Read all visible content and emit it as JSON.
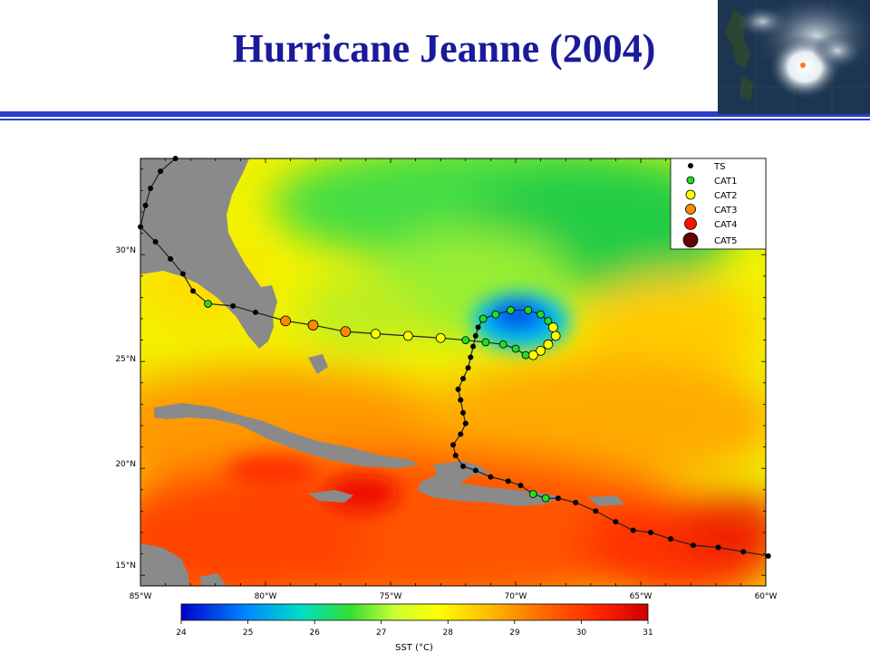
{
  "slide": {
    "title": "Hurricane Jeanne (2004)"
  },
  "map": {
    "lat_labels": [
      "30°N",
      "25°N",
      "20°N",
      "15°N"
    ],
    "lon_labels": [
      "85°W",
      "80°W",
      "75°W",
      "70°W",
      "65°W",
      "60°W"
    ],
    "lon_range": [
      -85,
      -60
    ],
    "lat_range": [
      14.5,
      34.5
    ],
    "legend": [
      {
        "label": "TS",
        "color": "#000000",
        "size": 3
      },
      {
        "label": "CAT1",
        "color": "#22dd22",
        "size": 4
      },
      {
        "label": "CAT2",
        "color": "#ffff00",
        "size": 5
      },
      {
        "label": "CAT3",
        "color": "#ff8800",
        "size": 5.5
      },
      {
        "label": "CAT4",
        "color": "#ff1100",
        "size": 6.5
      },
      {
        "label": "CAT5",
        "color": "#660000",
        "size": 8
      }
    ]
  },
  "colorbar": {
    "title": "SST (°C)",
    "ticks": [
      "24",
      "25",
      "26",
      "27",
      "28",
      "29",
      "30",
      "31"
    ],
    "min": 24,
    "max": 31
  },
  "track": [
    {
      "lon": -59.9,
      "lat": 15.9,
      "cat": "TS"
    },
    {
      "lon": -60.9,
      "lat": 16.1,
      "cat": "TS"
    },
    {
      "lon": -61.9,
      "lat": 16.3,
      "cat": "TS"
    },
    {
      "lon": -62.9,
      "lat": 16.4,
      "cat": "TS"
    },
    {
      "lon": -63.8,
      "lat": 16.7,
      "cat": "TS"
    },
    {
      "lon": -64.6,
      "lat": 17.0,
      "cat": "TS"
    },
    {
      "lon": -65.3,
      "lat": 17.1,
      "cat": "TS"
    },
    {
      "lon": -66.0,
      "lat": 17.5,
      "cat": "TS"
    },
    {
      "lon": -66.8,
      "lat": 18.0,
      "cat": "TS"
    },
    {
      "lon": -67.6,
      "lat": 18.4,
      "cat": "TS"
    },
    {
      "lon": -68.3,
      "lat": 18.6,
      "cat": "TS"
    },
    {
      "lon": -68.8,
      "lat": 18.6,
      "cat": "CAT1"
    },
    {
      "lon": -69.3,
      "lat": 18.8,
      "cat": "CAT1"
    },
    {
      "lon": -69.8,
      "lat": 19.2,
      "cat": "TS"
    },
    {
      "lon": -70.3,
      "lat": 19.4,
      "cat": "TS"
    },
    {
      "lon": -71.0,
      "lat": 19.6,
      "cat": "TS"
    },
    {
      "lon": -71.6,
      "lat": 19.9,
      "cat": "TS"
    },
    {
      "lon": -72.1,
      "lat": 20.1,
      "cat": "TS"
    },
    {
      "lon": -72.4,
      "lat": 20.6,
      "cat": "TS"
    },
    {
      "lon": -72.5,
      "lat": 21.1,
      "cat": "TS"
    },
    {
      "lon": -72.2,
      "lat": 21.6,
      "cat": "TS"
    },
    {
      "lon": -72.0,
      "lat": 22.1,
      "cat": "TS"
    },
    {
      "lon": -72.1,
      "lat": 22.6,
      "cat": "TS"
    },
    {
      "lon": -72.2,
      "lat": 23.2,
      "cat": "TS"
    },
    {
      "lon": -72.3,
      "lat": 23.7,
      "cat": "TS"
    },
    {
      "lon": -72.1,
      "lat": 24.2,
      "cat": "TS"
    },
    {
      "lon": -71.9,
      "lat": 24.7,
      "cat": "TS"
    },
    {
      "lon": -71.8,
      "lat": 25.2,
      "cat": "TS"
    },
    {
      "lon": -71.7,
      "lat": 25.7,
      "cat": "TS"
    },
    {
      "lon": -71.6,
      "lat": 26.2,
      "cat": "TS"
    },
    {
      "lon": -71.5,
      "lat": 26.6,
      "cat": "TS"
    },
    {
      "lon": -71.3,
      "lat": 27.0,
      "cat": "CAT1"
    },
    {
      "lon": -70.8,
      "lat": 27.2,
      "cat": "CAT1"
    },
    {
      "lon": -70.2,
      "lat": 27.4,
      "cat": "CAT1"
    },
    {
      "lon": -69.5,
      "lat": 27.4,
      "cat": "CAT1"
    },
    {
      "lon": -69.0,
      "lat": 27.2,
      "cat": "CAT1"
    },
    {
      "lon": -68.7,
      "lat": 26.9,
      "cat": "CAT1"
    },
    {
      "lon": -68.5,
      "lat": 26.6,
      "cat": "CAT2"
    },
    {
      "lon": -68.4,
      "lat": 26.2,
      "cat": "CAT2"
    },
    {
      "lon": -68.7,
      "lat": 25.8,
      "cat": "CAT2"
    },
    {
      "lon": -69.0,
      "lat": 25.5,
      "cat": "CAT2"
    },
    {
      "lon": -69.3,
      "lat": 25.3,
      "cat": "CAT2"
    },
    {
      "lon": -69.6,
      "lat": 25.3,
      "cat": "CAT1"
    },
    {
      "lon": -70.0,
      "lat": 25.6,
      "cat": "CAT1"
    },
    {
      "lon": -70.5,
      "lat": 25.8,
      "cat": "CAT1"
    },
    {
      "lon": -71.2,
      "lat": 25.9,
      "cat": "CAT1"
    },
    {
      "lon": -72.0,
      "lat": 26.0,
      "cat": "CAT1"
    },
    {
      "lon": -73.0,
      "lat": 26.1,
      "cat": "CAT2"
    },
    {
      "lon": -74.3,
      "lat": 26.2,
      "cat": "CAT2"
    },
    {
      "lon": -75.6,
      "lat": 26.3,
      "cat": "CAT2"
    },
    {
      "lon": -76.8,
      "lat": 26.4,
      "cat": "CAT3"
    },
    {
      "lon": -78.1,
      "lat": 26.7,
      "cat": "CAT3"
    },
    {
      "lon": -79.2,
      "lat": 26.9,
      "cat": "CAT3"
    },
    {
      "lon": -80.4,
      "lat": 27.3,
      "cat": "TS"
    },
    {
      "lon": -81.3,
      "lat": 27.6,
      "cat": "TS"
    },
    {
      "lon": -82.3,
      "lat": 27.7,
      "cat": "CAT1"
    },
    {
      "lon": -82.9,
      "lat": 28.3,
      "cat": "TS"
    },
    {
      "lon": -83.3,
      "lat": 29.1,
      "cat": "TS"
    },
    {
      "lon": -83.8,
      "lat": 29.8,
      "cat": "TS"
    },
    {
      "lon": -84.4,
      "lat": 30.6,
      "cat": "TS"
    },
    {
      "lon": -85.0,
      "lat": 31.3,
      "cat": "TS"
    },
    {
      "lon": -84.8,
      "lat": 32.3,
      "cat": "TS"
    },
    {
      "lon": -84.6,
      "lat": 33.1,
      "cat": "TS"
    },
    {
      "lon": -84.2,
      "lat": 33.9,
      "cat": "TS"
    },
    {
      "lon": -83.6,
      "lat": 34.5,
      "cat": "TS"
    }
  ]
}
